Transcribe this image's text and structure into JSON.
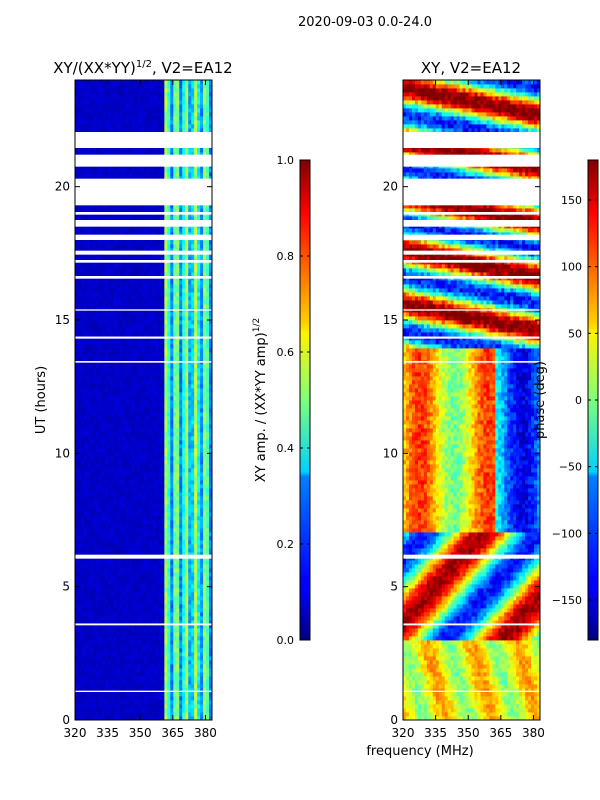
{
  "suptitle": "2020-09-03 0.0-24.0",
  "chart_data": [
    {
      "type": "heatmap",
      "title": "XY/(XX*YY)",
      "title_exponent": "1/2",
      "title_suffix": ", V2=EA12",
      "xlabel": "",
      "ylabel": "UT (hours)",
      "xlim": [
        320,
        383
      ],
      "ylim": [
        0,
        24
      ],
      "xticks": [
        320,
        335,
        350,
        365,
        380
      ],
      "yticks": [
        0,
        5,
        10,
        15,
        20
      ],
      "colormap": "jet",
      "colorbar": {
        "label": "XY amp. / (XX*YY amp)",
        "label_exponent": "1/2",
        "range": [
          0.0,
          1.0
        ],
        "ticks": [
          0.0,
          0.2,
          0.4,
          0.6,
          0.8,
          1.0
        ],
        "tick_labels": [
          "0.0",
          "0.2",
          "0.4",
          "0.6",
          "0.8",
          "1.0"
        ]
      },
      "gaps_hours": [
        [
          21.45,
          22.05
        ],
        [
          20.75,
          21.2
        ],
        [
          19.3,
          20.3
        ],
        [
          18.95,
          19.05
        ],
        [
          18.5,
          18.75
        ],
        [
          18.0,
          18.2
        ],
        [
          17.45,
          17.6
        ],
        [
          17.15,
          17.25
        ],
        [
          16.55,
          16.65
        ],
        [
          15.35,
          15.4
        ],
        [
          14.3,
          14.38
        ],
        [
          13.4,
          13.46
        ],
        [
          6.05,
          6.2
        ],
        [
          3.55,
          3.62
        ],
        [
          1.05,
          1.1
        ]
      ],
      "description_of_field": "mostly dark blue (~0.05) for 320-361 MHz; 361-381 MHz band of vertical cyan/green stripes (~0.3-0.5)"
    },
    {
      "type": "heatmap",
      "title": "XY, V2=EA12",
      "xlabel": "frequency (MHz)",
      "ylabel": "",
      "xlim": [
        320,
        383
      ],
      "ylim": [
        0,
        24
      ],
      "xticks": [
        320,
        335,
        350,
        365,
        380
      ],
      "yticks": [
        0,
        5,
        10,
        15,
        20
      ],
      "colormap": "jet",
      "colorbar": {
        "label": "phase (deg)",
        "range": [
          -180,
          180
        ],
        "ticks": [
          -150,
          -100,
          -50,
          0,
          50,
          100,
          150
        ],
        "tick_labels": [
          "−150",
          "−100",
          "−50",
          "0",
          "50",
          "100",
          "150"
        ]
      },
      "gaps_hours": [
        [
          21.45,
          22.05
        ],
        [
          20.75,
          21.2
        ],
        [
          19.3,
          20.3
        ],
        [
          18.95,
          19.05
        ],
        [
          18.5,
          18.75
        ],
        [
          18.0,
          18.2
        ],
        [
          17.45,
          17.6
        ],
        [
          17.15,
          17.25
        ],
        [
          16.55,
          16.65
        ],
        [
          15.35,
          15.4
        ],
        [
          14.3,
          14.38
        ],
        [
          13.4,
          13.46
        ],
        [
          6.05,
          6.2
        ],
        [
          3.55,
          3.62
        ],
        [
          1.05,
          1.1
        ]
      ],
      "description_of_field": "multicoloured phase pattern spanning full -180..180 range, with yellow/green near 0-5 h, red/blue swirls 3-7 h, and stripy bands above 14 h"
    }
  ]
}
